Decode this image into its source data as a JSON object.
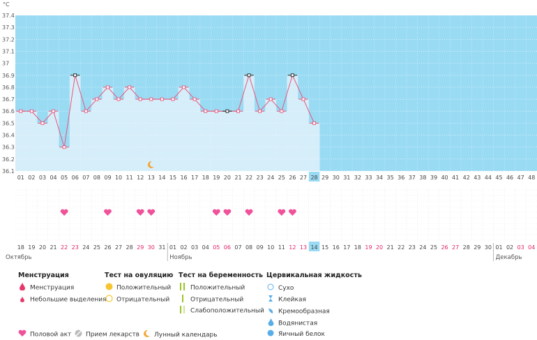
{
  "chart_data": {
    "type": "line",
    "unit": "°C",
    "ylim": [
      36.1,
      37.4
    ],
    "y_ticks": [
      "37.4",
      "37.3",
      "37.2",
      "37.1",
      "37",
      "36.9",
      "36.8",
      "36.7",
      "36.6",
      "36.5",
      "36.4",
      "36.3",
      "36.2",
      "36.1"
    ],
    "cycle_days": [
      "01",
      "02",
      "03",
      "04",
      "05",
      "06",
      "07",
      "08",
      "09",
      "10",
      "11",
      "12",
      "13",
      "14",
      "15",
      "16",
      "17",
      "18",
      "19",
      "20",
      "21",
      "22",
      "23",
      "24",
      "25",
      "26",
      "27",
      "28",
      "29",
      "30",
      "31",
      "32",
      "33",
      "34",
      "35",
      "36",
      "37",
      "38",
      "39",
      "40",
      "41",
      "42",
      "43",
      "44",
      "45",
      "46",
      "47",
      "48"
    ],
    "today_cycle_day": "28",
    "temperatures": [
      36.6,
      36.6,
      36.5,
      36.6,
      36.3,
      36.9,
      36.6,
      36.7,
      36.8,
      36.7,
      36.8,
      36.7,
      36.7,
      36.7,
      36.7,
      36.8,
      36.7,
      36.6,
      36.6,
      36.6,
      36.6,
      36.9,
      36.6,
      36.7,
      36.6,
      36.9,
      36.7,
      36.5
    ],
    "dark_markers_days": [
      6,
      20,
      22,
      26
    ],
    "moon_day": 13,
    "heart_days": [
      5,
      9,
      12,
      13,
      19,
      20,
      22,
      25,
      26
    ],
    "dates": [
      "18",
      "19",
      "20",
      "21",
      "22",
      "23",
      "24",
      "25",
      "26",
      "27",
      "28",
      "29",
      "30",
      "31",
      "01",
      "02",
      "03",
      "04",
      "05",
      "06",
      "07",
      "08",
      "09",
      "10",
      "11",
      "12",
      "13",
      "14",
      "15",
      "16",
      "17",
      "18",
      "19",
      "20",
      "21",
      "22",
      "23",
      "24",
      "25",
      "26",
      "27",
      "28",
      "29",
      "30",
      "01",
      "02",
      "03",
      "04"
    ],
    "weekend_dates_idx": [
      4,
      5,
      11,
      12,
      18,
      19,
      25,
      26,
      32,
      33,
      39,
      40,
      46,
      47
    ],
    "today_date": "14",
    "months": [
      {
        "name": "Октябрь",
        "start_idx": 0
      },
      {
        "name": "Ноябрь",
        "start_idx": 14
      },
      {
        "name": "Декабрь",
        "start_idx": 44
      }
    ],
    "colors": {
      "bg_blue": "#9adbf4",
      "bar": "#d6eefa",
      "line": "#e8557a",
      "weekend_text": "#e0236b",
      "heart": "#f0529a",
      "today_bg": "#9adbf4",
      "moon": "#f4a83b"
    }
  },
  "legend": {
    "menstruation": {
      "title": "Менструация",
      "items": [
        "Менструация",
        "Небольшие выделения"
      ]
    },
    "ovulation": {
      "title": "Тест на овуляцию",
      "items": [
        "Положительный",
        "Отрицательный"
      ]
    },
    "pregnancy": {
      "title": "Тест на беременность",
      "items": [
        "Положительный",
        "Отрицательный",
        "Слабоположительный"
      ]
    },
    "cervical": {
      "title": "Цервикальная жидкость",
      "items": [
        "Сухо",
        "Клейкая",
        "Кремообразная",
        "Водянистая",
        "Яичный белок"
      ]
    },
    "bottom": [
      "Половой акт",
      "Прием лекарств",
      "Лунный календарь"
    ]
  }
}
